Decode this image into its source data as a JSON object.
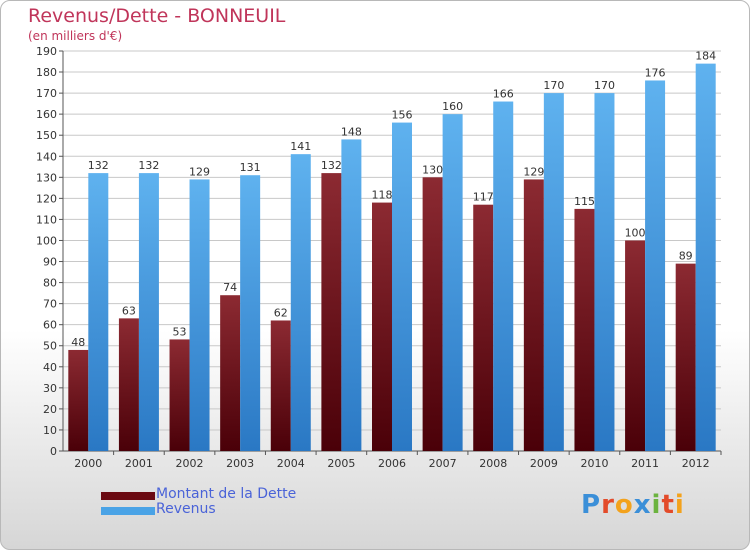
{
  "chart": {
    "title": "Revenus/Dette - BONNEUIL",
    "subtitle": "(en milliers d'€)"
  },
  "legend": {
    "items": [
      {
        "label": "Montant de la Dette",
        "color": "#6b0a12"
      },
      {
        "label": "Revenus",
        "color": "#4aa3e6"
      }
    ]
  },
  "logo": {
    "text": "Proxiti",
    "letters": [
      {
        "char": "P",
        "color": "#3b8fd8"
      },
      {
        "char": "r",
        "color": "#e34b2a"
      },
      {
        "char": "o",
        "color": "#f3a21c"
      },
      {
        "char": "x",
        "color": "#3b8fd8"
      },
      {
        "char": "i",
        "color": "#6cb33f"
      },
      {
        "char": "t",
        "color": "#e34b2a"
      },
      {
        "char": "i",
        "color": "#f3a21c"
      }
    ]
  },
  "chart_data": {
    "type": "bar",
    "title": "Revenus/Dette - BONNEUIL",
    "subtitle": "(en milliers d'€)",
    "categories": [
      "2000",
      "2001",
      "2002",
      "2003",
      "2004",
      "2005",
      "2006",
      "2007",
      "2008",
      "2009",
      "2010",
      "2011",
      "2012"
    ],
    "series": [
      {
        "name": "Montant de la Dette",
        "color": "#6b0a12",
        "values": [
          48,
          63,
          53,
          74,
          62,
          132,
          118,
          130,
          117,
          129,
          115,
          100,
          89
        ]
      },
      {
        "name": "Revenus",
        "color": "#4aa3e6",
        "values": [
          132,
          132,
          129,
          131,
          141,
          148,
          156,
          160,
          166,
          170,
          170,
          176,
          184
        ]
      }
    ],
    "ylim": [
      0,
      190
    ],
    "ytick_step": 10,
    "grid": true,
    "legend_position": "bottom-left"
  }
}
